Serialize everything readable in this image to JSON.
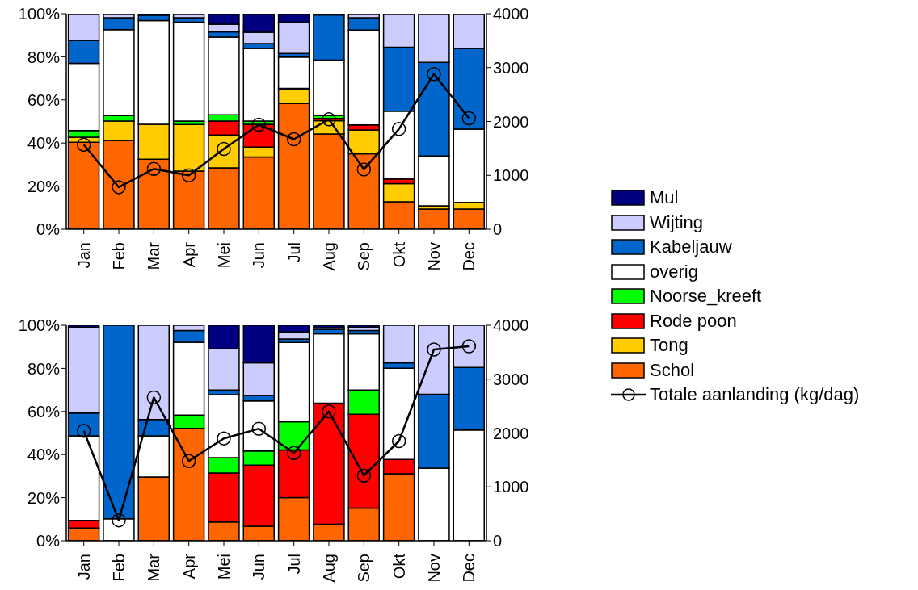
{
  "chart_data": [
    {
      "type": "bar",
      "stacked": true,
      "categories": [
        "Jan",
        "Feb",
        "Mar",
        "Apr",
        "Mei",
        "Jun",
        "Jul",
        "Aug",
        "Sep",
        "Okt",
        "Nov",
        "Dec"
      ],
      "ylim": [
        0,
        100
      ],
      "yticks": [
        {
          "value": 0,
          "label": "0%"
        },
        {
          "value": 20,
          "label": "20%"
        },
        {
          "value": 40,
          "label": "40%"
        },
        {
          "value": 60,
          "label": "60%"
        },
        {
          "value": 80,
          "label": "80%"
        },
        {
          "value": 100,
          "label": "100%"
        }
      ],
      "y2lim": [
        0,
        4000
      ],
      "y2ticks": [
        0,
        1000,
        2000,
        3000,
        4000
      ],
      "legend": "right",
      "marker": "circle",
      "series": [
        {
          "name": "Schol",
          "color": "#ff6600",
          "values": [
            40.4,
            41.2,
            32.5,
            27.0,
            28.5,
            33.5,
            58.3,
            44.2,
            35.0,
            12.7,
            9.4,
            9.4
          ]
        },
        {
          "name": "Tong",
          "color": "#ffcc00",
          "values": [
            2.3,
            9.0,
            16.2,
            21.6,
            15.2,
            4.6,
            6.5,
            6.2,
            11.1,
            8.5,
            1.5,
            3.1
          ]
        },
        {
          "name": "Rode poon",
          "color": "#ff0000",
          "values": [
            0,
            0,
            0,
            0,
            6.5,
            10.6,
            0.6,
            1.0,
            2.3,
            2.1,
            0,
            0
          ]
        },
        {
          "name": "Noorse_kreeft",
          "color": "#00ff00",
          "values": [
            3.1,
            2.5,
            0,
            1.6,
            2.9,
            1.5,
            0,
            1.3,
            0,
            0,
            0,
            0
          ]
        },
        {
          "name": "overig",
          "color": "#ffffff",
          "values": [
            31.2,
            39.9,
            48.1,
            45.9,
            36.0,
            33.7,
            14.5,
            25.8,
            44.0,
            31.5,
            23.1,
            33.9
          ]
        },
        {
          "name": "Kabeljauw",
          "color": "#0066cc",
          "values": [
            10.6,
            5.5,
            2.5,
            2.0,
            2.5,
            2.2,
            1.7,
            20.9,
            5.7,
            29.7,
            43.4,
            37.5
          ]
        },
        {
          "name": "Wijting",
          "color": "#ccccff",
          "values": [
            12.4,
            1.9,
            0,
            1.9,
            3.5,
            5.3,
            14.5,
            0,
            1.9,
            15.5,
            22.6,
            16.1
          ]
        },
        {
          "name": "Mul",
          "color": "#000080",
          "values": [
            0,
            0,
            0.7,
            0,
            4.9,
            8.6,
            3.9,
            0.6,
            0,
            0,
            0,
            0
          ]
        },
        {
          "name": "Totale aanlanding (kg/dag)",
          "type": "line",
          "axis": "y2",
          "color": "#000000",
          "values": [
            1570,
            780,
            1120,
            1000,
            1490,
            1940,
            1670,
            2040,
            1110,
            1860,
            2880,
            2060
          ]
        }
      ]
    },
    {
      "type": "bar",
      "stacked": true,
      "categories": [
        "Jan",
        "Feb",
        "Mar",
        "Apr",
        "Mei",
        "Jun",
        "Jul",
        "Aug",
        "Sep",
        "Okt",
        "Nov",
        "Dec"
      ],
      "ylim": [
        0,
        100
      ],
      "yticks": [
        {
          "value": 0,
          "label": "0%"
        },
        {
          "value": 20,
          "label": "20%"
        },
        {
          "value": 40,
          "label": "40%"
        },
        {
          "value": 60,
          "label": "60%"
        },
        {
          "value": 80,
          "label": "80%"
        },
        {
          "value": 100,
          "label": "100%"
        }
      ],
      "y2lim": [
        0,
        4000
      ],
      "y2ticks": [
        0,
        1000,
        2000,
        3000,
        4000
      ],
      "legend": "right",
      "marker": "circle",
      "series": [
        {
          "name": "Schol",
          "color": "#ff6600",
          "values": [
            5.9,
            0,
            29.6,
            52.2,
            8.7,
            6.7,
            20.0,
            7.7,
            15.2,
            31.1,
            0,
            0
          ]
        },
        {
          "name": "Tong",
          "color": "#ffcc00",
          "values": [
            0,
            0,
            0,
            0,
            0,
            0,
            0,
            0,
            0,
            0,
            0,
            0
          ]
        },
        {
          "name": "Rode poon",
          "color": "#ff0000",
          "values": [
            3.6,
            0,
            0,
            0,
            22.8,
            28.4,
            22.1,
            56.2,
            43.5,
            6.6,
            0,
            0
          ]
        },
        {
          "name": "Noorse_kreeft",
          "color": "#00ff00",
          "values": [
            0,
            0,
            0,
            6.1,
            7.1,
            6.6,
            13.1,
            0,
            11.2,
            0,
            0,
            0
          ]
        },
        {
          "name": "overig",
          "color": "#ffffff",
          "values": [
            39.2,
            10.2,
            19.1,
            33.8,
            29.2,
            23.2,
            36.8,
            32.2,
            26.2,
            42.4,
            33.7,
            51.4
          ]
        },
        {
          "name": "Kabeljauw",
          "color": "#0066cc",
          "values": [
            10.6,
            89.8,
            7.6,
            5.5,
            2.1,
            2.5,
            1.6,
            2.0,
            1.5,
            2.5,
            34.3,
            29.0
          ]
        },
        {
          "name": "Wijting",
          "color": "#ccccff",
          "values": [
            39.8,
            0,
            43.7,
            2.4,
            19.2,
            15.2,
            3.3,
            0.8,
            1.5,
            17.4,
            32.0,
            19.6
          ]
        },
        {
          "name": "Mul",
          "color": "#000080",
          "values": [
            0.9,
            0,
            0,
            0,
            10.9,
            17.4,
            3.1,
            1.1,
            0.9,
            0,
            0,
            0
          ]
        },
        {
          "name": "Totale aanlanding (kg/dag)",
          "type": "line",
          "axis": "y2",
          "color": "#000000",
          "values": [
            2040,
            380,
            2660,
            1480,
            1900,
            2080,
            1630,
            2400,
            1210,
            1850,
            3550,
            3610
          ]
        }
      ]
    }
  ]
}
